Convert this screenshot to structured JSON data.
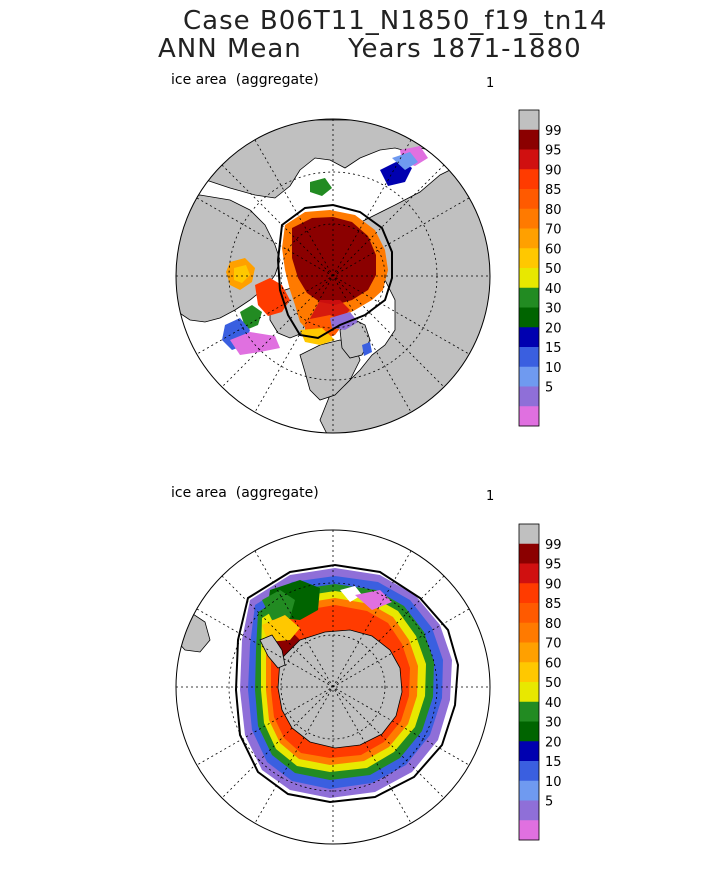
{
  "title": {
    "line1": "Case B06T11_N1850_f19_tn14",
    "line2": "ANN Mean     Years 1871-1880"
  },
  "panels": [
    {
      "label": "ice area  (aggregate)",
      "number": "1"
    },
    {
      "label": "ice area  (aggregate)",
      "number": "1"
    }
  ],
  "colorbar": {
    "labels": [
      "99",
      "95",
      "90",
      "85",
      "80",
      "70",
      "60",
      "50",
      "40",
      "30",
      "20",
      "15",
      "10",
      "5"
    ],
    "colors": [
      "#c0c0c0",
      "#8b0000",
      "#d01010",
      "#ff3b00",
      "#ff5a00",
      "#ff7a00",
      "#ffa000",
      "#ffc800",
      "#e8e800",
      "#228b22",
      "#006400",
      "#0000b0",
      "#3a5fe0",
      "#6f9af0",
      "#8f6fd8",
      "#e070e0"
    ]
  },
  "map_colors": {
    "land": "#c0c0c0",
    "ocean": "#ffffff"
  }
}
